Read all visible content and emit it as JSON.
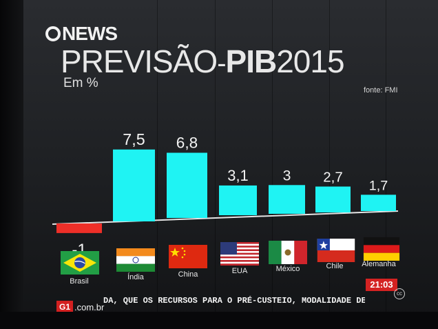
{
  "logo_text": "NEWS",
  "title": {
    "main": "PREVISÃO",
    "dash": "-",
    "bold": "PIB",
    "year": "2015"
  },
  "subtitle": "Em %",
  "source": "fonte: FMI",
  "chart_data": {
    "type": "bar",
    "title": "PREVISÃO - PIB 2015",
    "subtitle": "Em %",
    "source": "fonte: FMI",
    "categories": [
      "Brasil",
      "Índia",
      "China",
      "EUA",
      "México",
      "Chile",
      "Alemanha"
    ],
    "values": [
      -1,
      7.5,
      6.8,
      3.1,
      3,
      2.7,
      1.7
    ],
    "value_labels": [
      "-1",
      "7,5",
      "6,8",
      "3,1",
      "3",
      "2,7",
      "1,7"
    ],
    "colors": {
      "positive": "#1ff3f3",
      "negative": "#ee2f28",
      "baseline": "#e6e6e6"
    },
    "grid": false,
    "legend": "none"
  },
  "ticker": {
    "g1_badge": "G1",
    "domain": ".com.br",
    "crawl": "DA, QUE OS RECURSOS PARA O PRÉ-CUSTEIO, MODALIDADE DE",
    "clock": "21:03",
    "cc": "cc"
  }
}
